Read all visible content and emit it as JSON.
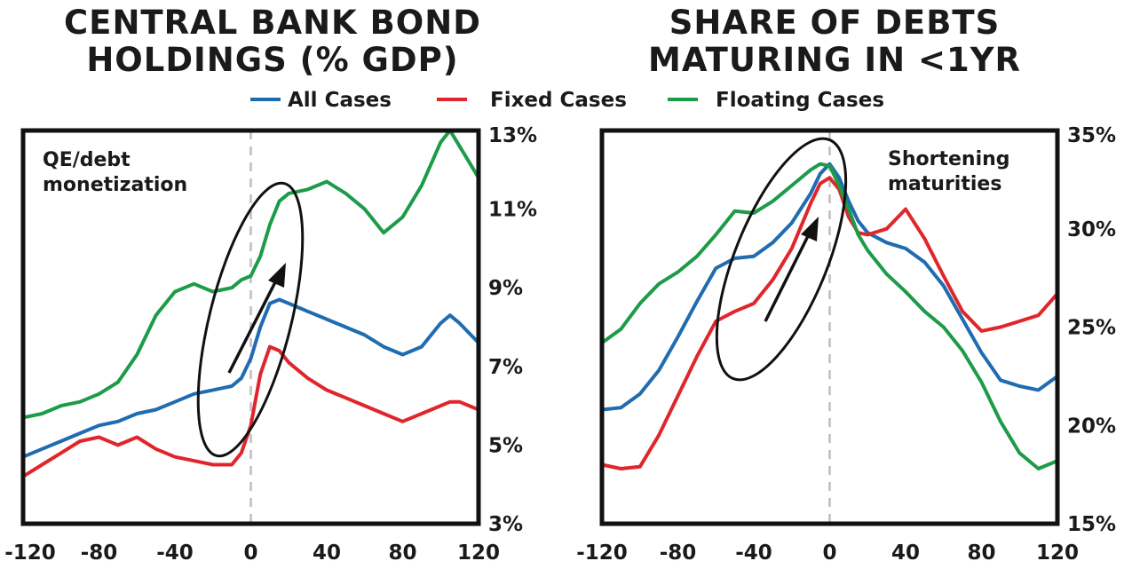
{
  "legend": [
    {
      "label": "All Cases",
      "color": "#1f6cb0"
    },
    {
      "label": "Fixed Cases",
      "color": "#e0262b"
    },
    {
      "label": "Floating Cases",
      "color": "#1c9b48"
    }
  ],
  "chart_data": [
    {
      "type": "line",
      "title_lines": [
        "CENTRAL BANK BOND",
        "HOLDINGS (% GDP)"
      ],
      "annotation_lines": [
        "QE/debt",
        "monetization"
      ],
      "xlim": [
        -120,
        120
      ],
      "ylim": [
        3,
        13
      ],
      "x_ticks": [
        "-120",
        "-80",
        "-40",
        "0",
        "40",
        "80",
        "120"
      ],
      "y_ticks": [
        "3%",
        "5%",
        "7%",
        "9%",
        "11%",
        "13%"
      ],
      "x_tick_values": [
        -120,
        -80,
        -40,
        0,
        40,
        80,
        120
      ],
      "y_tick_values": [
        3,
        5,
        7,
        9,
        11,
        13
      ],
      "vline_x": 0,
      "series": [
        {
          "name": "All Cases",
          "color": "#1f6cb0",
          "x": [
            -120,
            -110,
            -100,
            -90,
            -80,
            -70,
            -60,
            -50,
            -40,
            -30,
            -20,
            -10,
            -5,
            0,
            5,
            10,
            15,
            20,
            30,
            40,
            50,
            60,
            70,
            80,
            90,
            100,
            105,
            110,
            120
          ],
          "y": [
            4.7,
            4.9,
            5.1,
            5.3,
            5.5,
            5.6,
            5.8,
            5.9,
            6.1,
            6.3,
            6.4,
            6.5,
            6.7,
            7.2,
            8.0,
            8.6,
            8.7,
            8.6,
            8.4,
            8.2,
            8.0,
            7.8,
            7.5,
            7.3,
            7.5,
            8.1,
            8.3,
            8.1,
            7.6
          ]
        },
        {
          "name": "Fixed Cases",
          "color": "#e0262b",
          "x": [
            -120,
            -110,
            -100,
            -90,
            -80,
            -70,
            -60,
            -50,
            -40,
            -30,
            -20,
            -10,
            -5,
            0,
            5,
            10,
            15,
            20,
            30,
            40,
            50,
            60,
            70,
            80,
            90,
            100,
            105,
            110,
            120
          ],
          "y": [
            4.2,
            4.5,
            4.8,
            5.1,
            5.2,
            5.0,
            5.2,
            4.9,
            4.7,
            4.6,
            4.5,
            4.5,
            4.8,
            5.5,
            6.8,
            7.5,
            7.4,
            7.1,
            6.7,
            6.4,
            6.2,
            6.0,
            5.8,
            5.6,
            5.8,
            6.0,
            6.1,
            6.1,
            5.9
          ]
        },
        {
          "name": "Floating Cases",
          "color": "#1c9b48",
          "x": [
            -120,
            -110,
            -100,
            -90,
            -80,
            -70,
            -60,
            -50,
            -40,
            -30,
            -20,
            -10,
            -5,
            0,
            5,
            10,
            15,
            20,
            30,
            40,
            50,
            60,
            70,
            80,
            90,
            100,
            105,
            110,
            120
          ],
          "y": [
            5.7,
            5.8,
            6.0,
            6.1,
            6.3,
            6.6,
            7.3,
            8.3,
            8.9,
            9.1,
            8.9,
            9.0,
            9.2,
            9.3,
            9.8,
            10.6,
            11.2,
            11.4,
            11.5,
            11.7,
            11.4,
            11.0,
            10.4,
            10.8,
            11.6,
            12.7,
            13.0,
            12.6,
            11.8
          ]
        }
      ]
    },
    {
      "type": "line",
      "title_lines": [
        "SHARE OF DEBTS",
        "MATURING IN <1YR"
      ],
      "annotation_lines": [
        "Shortening",
        "maturities"
      ],
      "xlim": [
        -120,
        120
      ],
      "ylim": [
        15,
        35
      ],
      "x_ticks": [
        "-120",
        "-80",
        "-40",
        "0",
        "40",
        "80",
        "120"
      ],
      "y_ticks": [
        "15%",
        "20%",
        "25%",
        "30%",
        "35%"
      ],
      "x_tick_values": [
        -120,
        -80,
        -40,
        0,
        40,
        80,
        120
      ],
      "y_tick_values": [
        15,
        20,
        25,
        30,
        35
      ],
      "vline_x": 0,
      "series": [
        {
          "name": "All Cases",
          "color": "#1f6cb0",
          "x": [
            -120,
            -110,
            -100,
            -90,
            -80,
            -70,
            -60,
            -50,
            -40,
            -30,
            -20,
            -10,
            -5,
            0,
            5,
            10,
            15,
            20,
            30,
            40,
            50,
            60,
            70,
            80,
            90,
            100,
            110,
            120
          ],
          "y": [
            20.8,
            20.9,
            21.6,
            22.8,
            24.5,
            26.3,
            28.0,
            28.5,
            28.6,
            29.3,
            30.3,
            31.8,
            32.8,
            33.3,
            32.6,
            31.4,
            30.4,
            29.8,
            29.3,
            29.0,
            28.3,
            27.1,
            25.4,
            23.7,
            22.3,
            22.0,
            21.8,
            22.5
          ]
        },
        {
          "name": "Fixed Cases",
          "color": "#e0262b",
          "x": [
            -120,
            -110,
            -100,
            -90,
            -80,
            -70,
            -60,
            -50,
            -40,
            -30,
            -20,
            -10,
            -5,
            0,
            5,
            10,
            15,
            20,
            30,
            40,
            50,
            60,
            70,
            80,
            90,
            100,
            110,
            120
          ],
          "y": [
            18.0,
            17.8,
            17.9,
            19.5,
            21.5,
            23.5,
            25.3,
            25.8,
            26.2,
            27.4,
            29.0,
            31.3,
            32.3,
            32.6,
            32.0,
            30.6,
            29.8,
            29.7,
            30.0,
            31.0,
            29.5,
            27.6,
            25.8,
            24.8,
            25.0,
            25.3,
            25.6,
            26.7
          ]
        },
        {
          "name": "Floating Cases",
          "color": "#1c9b48",
          "x": [
            -120,
            -110,
            -100,
            -90,
            -80,
            -70,
            -60,
            -50,
            -40,
            -30,
            -20,
            -10,
            -5,
            0,
            5,
            10,
            15,
            20,
            30,
            40,
            50,
            60,
            70,
            80,
            90,
            100,
            110,
            120
          ],
          "y": [
            24.2,
            24.9,
            26.2,
            27.2,
            27.8,
            28.6,
            29.7,
            30.9,
            30.8,
            31.4,
            32.2,
            33.0,
            33.3,
            33.2,
            32.2,
            31.0,
            29.7,
            28.9,
            27.7,
            26.8,
            25.8,
            25.0,
            23.8,
            22.2,
            20.2,
            18.6,
            17.8,
            18.2
          ]
        }
      ]
    }
  ]
}
